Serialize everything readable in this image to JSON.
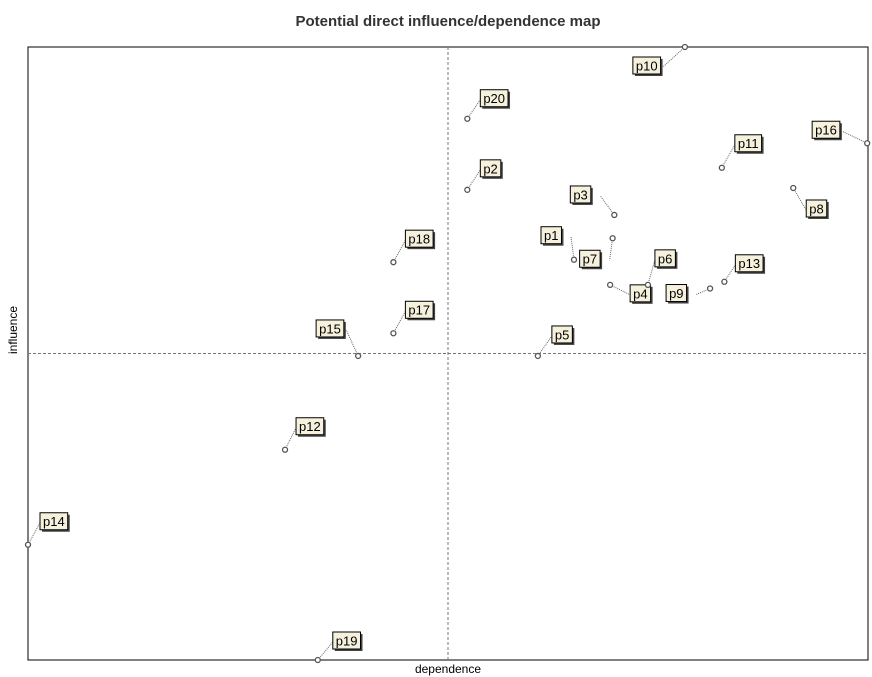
{
  "chart_data": {
    "type": "scatter",
    "title": "Potential direct influence/dependence map",
    "xlabel": "dependence",
    "ylabel": "influence",
    "labels": [
      "p1",
      "p2",
      "p3",
      "p4",
      "p5",
      "p6",
      "p7",
      "p8",
      "p9",
      "p10",
      "p11",
      "p12",
      "p13",
      "p14",
      "p15",
      "p16",
      "p17",
      "p18",
      "p19",
      "p20"
    ],
    "x": [
      65.0,
      52.3,
      69.8,
      69.3,
      60.7,
      73.8,
      69.6,
      91.1,
      81.2,
      78.2,
      82.6,
      30.6,
      82.9,
      0,
      39.3,
      99.9,
      43.5,
      43.5,
      34.5,
      52.3
    ],
    "values": [
      65.3,
      76.7,
      72.6,
      61.2,
      49.6,
      61.2,
      68.8,
      77.0,
      60.6,
      100,
      80.3,
      34.3,
      61.7,
      18.8,
      49.6,
      84.3,
      53.3,
      64.9,
      0,
      88.3
    ],
    "xlim": [
      0,
      100
    ],
    "ylim": [
      0,
      100
    ],
    "mean_x": 50,
    "mean_y": 50,
    "color": "#555555"
  }
}
